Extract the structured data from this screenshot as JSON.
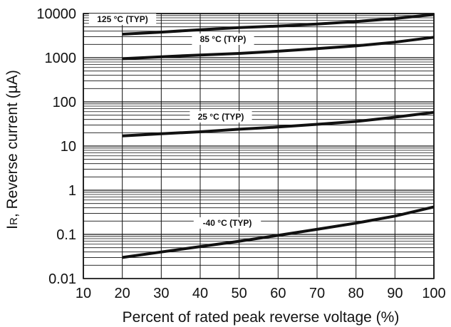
{
  "chart_data": {
    "type": "line",
    "xlabel": "Percent of rated peak reverse voltage (%)",
    "ylabel": "I",
    "ylabel_sub": "R",
    "ylabel_rest": ", Reverse current (µA)",
    "yscale": "log",
    "xlim": [
      10,
      100
    ],
    "ylim": [
      0.01,
      10000
    ],
    "grid": true,
    "x_ticks": [
      "10",
      "20",
      "30",
      "40",
      "50",
      "60",
      "70",
      "80",
      "90",
      "100"
    ],
    "y_ticks": [
      "0.01",
      "0.1",
      "1",
      "10",
      "100",
      "1000",
      "10000"
    ],
    "series": [
      {
        "name": "125 °C (TYP)",
        "x": [
          20,
          30,
          40,
          50,
          60,
          70,
          80,
          90,
          100
        ],
        "y": [
          3400,
          3800,
          4300,
          4800,
          5200,
          5800,
          6600,
          7700,
          9500
        ]
      },
      {
        "name": "85 °C (TYP)",
        "x": [
          20,
          30,
          40,
          50,
          60,
          70,
          80,
          90,
          100
        ],
        "y": [
          950,
          1050,
          1150,
          1250,
          1400,
          1600,
          1850,
          2250,
          2900
        ]
      },
      {
        "name": "25 °C (TYP)",
        "x": [
          20,
          30,
          40,
          50,
          60,
          70,
          80,
          90,
          100
        ],
        "y": [
          17,
          19,
          21,
          24,
          27,
          31,
          36,
          45,
          58
        ]
      },
      {
        "name": "-40 °C (TYP)",
        "x": [
          20,
          30,
          40,
          50,
          60,
          70,
          80,
          90,
          100
        ],
        "y": [
          0.03,
          0.04,
          0.053,
          0.07,
          0.095,
          0.13,
          0.18,
          0.26,
          0.42
        ]
      }
    ]
  }
}
